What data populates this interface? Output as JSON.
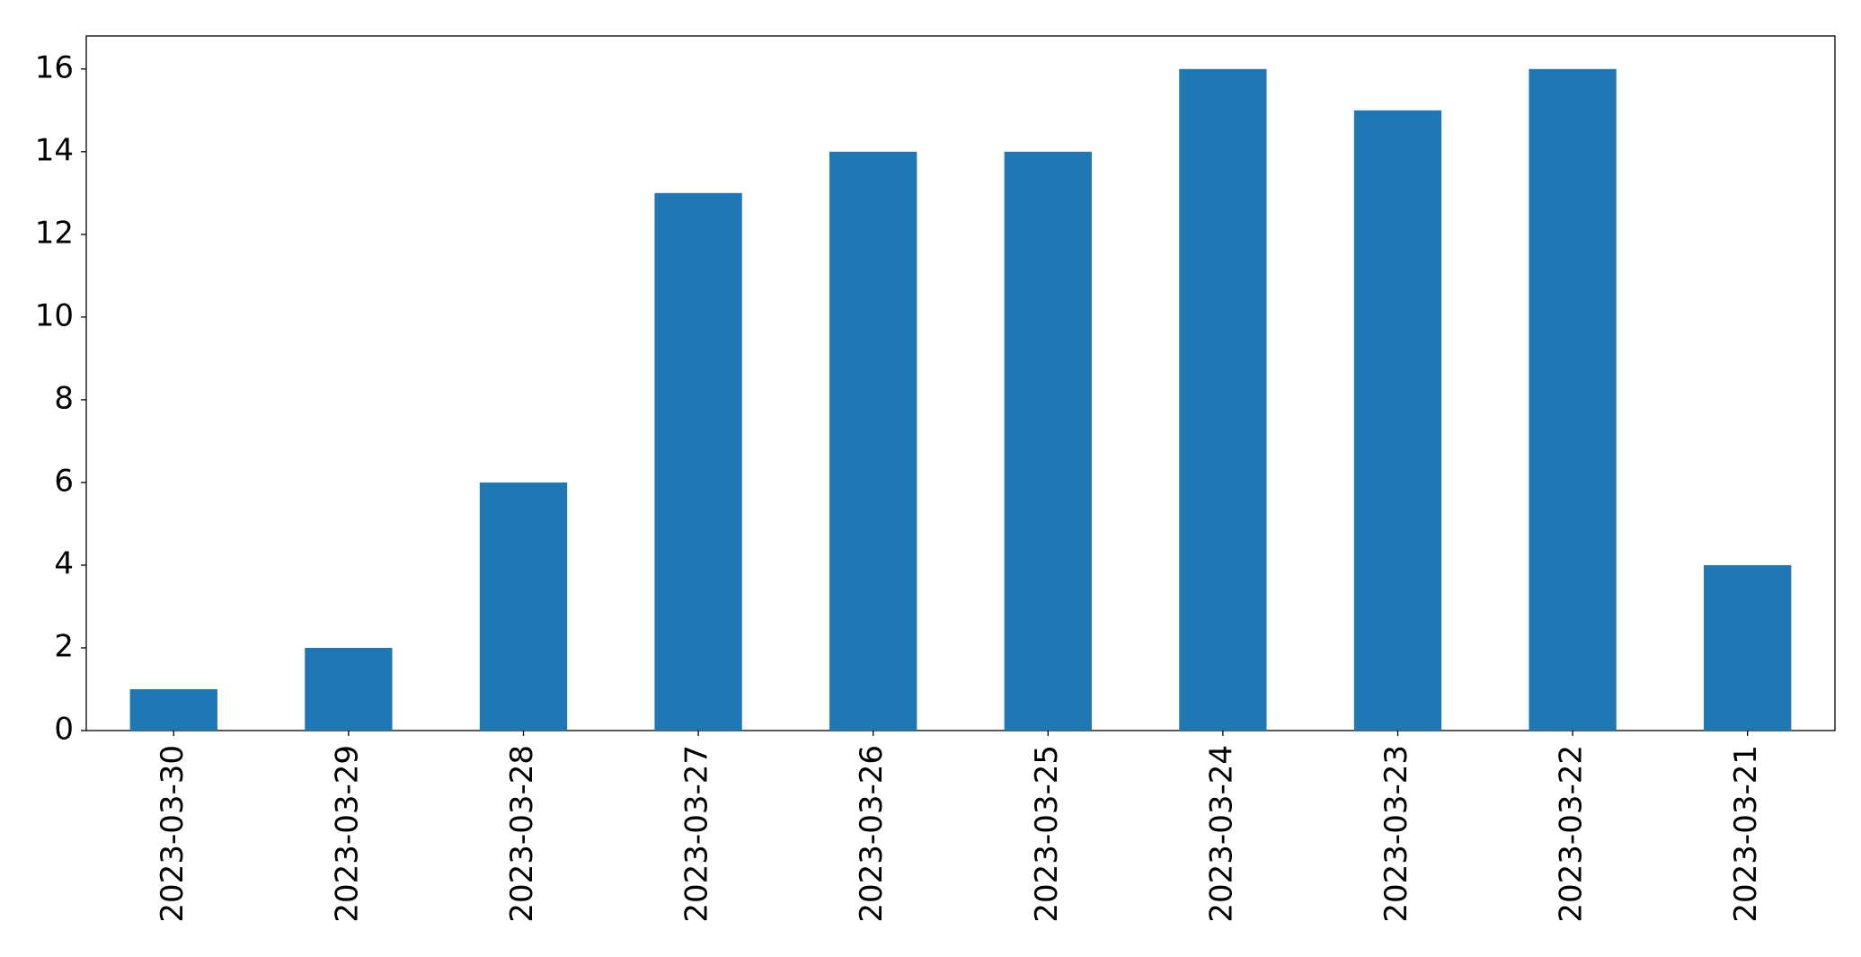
{
  "chart_data": {
    "type": "bar",
    "categories": [
      "2023-03-30",
      "2023-03-29",
      "2023-03-28",
      "2023-03-27",
      "2023-03-26",
      "2023-03-25",
      "2023-03-24",
      "2023-03-23",
      "2023-03-22",
      "2023-03-21"
    ],
    "values": [
      1,
      2,
      6,
      13,
      14,
      14,
      16,
      15,
      16,
      4
    ],
    "color": "#1f77b4",
    "ylim": [
      0,
      16.8
    ],
    "yticks": [
      0,
      2,
      4,
      6,
      8,
      10,
      12,
      14,
      16
    ],
    "grid": false
  }
}
